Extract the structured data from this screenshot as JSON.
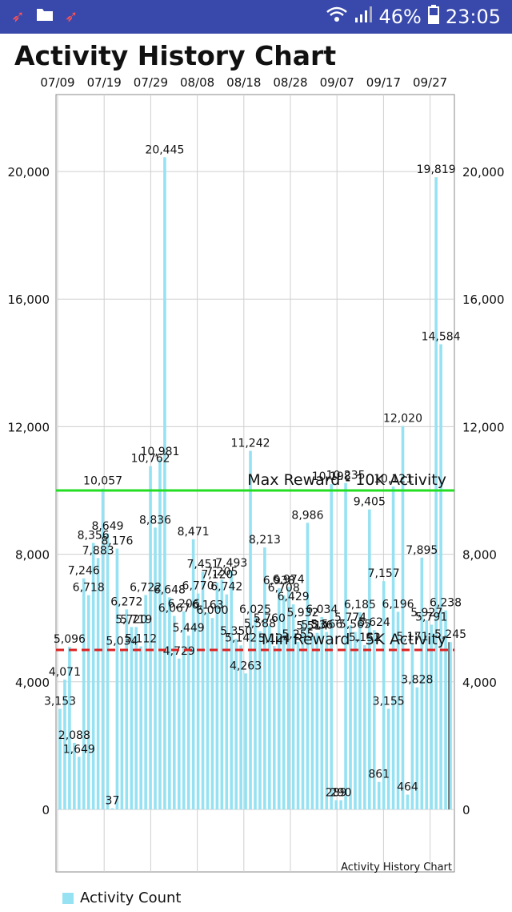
{
  "status_bar": {
    "battery": "46%",
    "time": "23:05"
  },
  "app": {
    "title": "Activity History Chart"
  },
  "chart_data": {
    "type": "bar",
    "title": "Activity History Chart",
    "description_label": "Activity History Chart",
    "xlabel": "",
    "ylabel": "",
    "x_tick_labels": [
      "07/09",
      "07/19",
      "07/29",
      "08/08",
      "08/18",
      "08/28",
      "09/07",
      "09/17",
      "09/27"
    ],
    "ylim": [
      -1500,
      22500
    ],
    "y_ticks": [
      0,
      4000,
      8000,
      12000,
      16000,
      20000
    ],
    "y_tick_labels": [
      "0",
      "4,000",
      "8,000",
      "12,000",
      "16,000",
      "20,000"
    ],
    "grid": true,
    "legend_position": "bottom-left",
    "series": [
      {
        "name": "Activity Count",
        "color": "#96e2f2",
        "values": [
          3153,
          4071,
          5096,
          2088,
          1649,
          7246,
          6718,
          8356,
          7883,
          10057,
          8649,
          37,
          8176,
          5034,
          6272,
          5720,
          5719,
          5112,
          6722,
          10762,
          8836,
          10981,
          20445,
          6648,
          6067,
          4729,
          6206,
          5449,
          8471,
          6770,
          7451,
          6163,
          6000,
          7120,
          7205,
          6742,
          7493,
          5350,
          5142,
          4263,
          11242,
          6025,
          5588,
          8213,
          5760,
          5124,
          6938,
          6708,
          6974,
          6429,
          5255,
          5932,
          8986,
          5514,
          5536,
          6034,
          5566,
          10198,
          289,
          290,
          10235,
          5774,
          5565,
          6185,
          5152,
          9405,
          5624,
          861,
          7157,
          3155,
          10121,
          6196,
          12020,
          464,
          5171,
          3828,
          7895,
          5927,
          5791,
          19819,
          14584,
          6238,
          5245
        ],
        "labels": [
          "3,153",
          "4,071",
          "5,096",
          "2,088",
          "1,649",
          "7,246",
          "6,718",
          "8,356",
          "7,883",
          "10,057",
          "8,649",
          "37",
          "8,176",
          "5,034",
          "6,272",
          "5,720",
          "5,719",
          "5,112",
          "6,722",
          "10,762",
          "8,836",
          "10,981",
          "20,445",
          "6,648",
          "6,067",
          "4,729",
          "6,206",
          "5,449",
          "8,471",
          "6,770",
          "7,451",
          "6,163",
          "6,000",
          "7,120",
          "7,205",
          "6,742",
          "7,493",
          "5,350",
          "5,142",
          "4,263",
          "11,242",
          "6,025",
          "5,588",
          "8,213",
          "5,760",
          "5,124",
          "6,938",
          "6,708",
          "6,974",
          "6,429",
          "5,255",
          "5,932",
          "8,986",
          "5,514",
          "5,536",
          "6,034",
          "5,566",
          "10,198",
          "289",
          "290",
          "10,235",
          "5,774",
          "5,565",
          "6,185",
          "5,152",
          "9,405",
          "5,624",
          "861",
          "7,157",
          "3,155",
          "10,121",
          "6,196",
          "12,020",
          "464",
          "5,171",
          "3,828",
          "7,895",
          "5,927",
          "5,791",
          "19,819",
          "14,584",
          "6,238",
          "5,245"
        ]
      }
    ],
    "limit_lines": [
      {
        "value": 10000,
        "label": "Max Reward - 10K Activity",
        "color": "#22dd22",
        "style": "solid"
      },
      {
        "value": 5000,
        "label": "Min Reward - 5K Activity",
        "color": "#dd2222",
        "style": "dashed"
      }
    ]
  }
}
